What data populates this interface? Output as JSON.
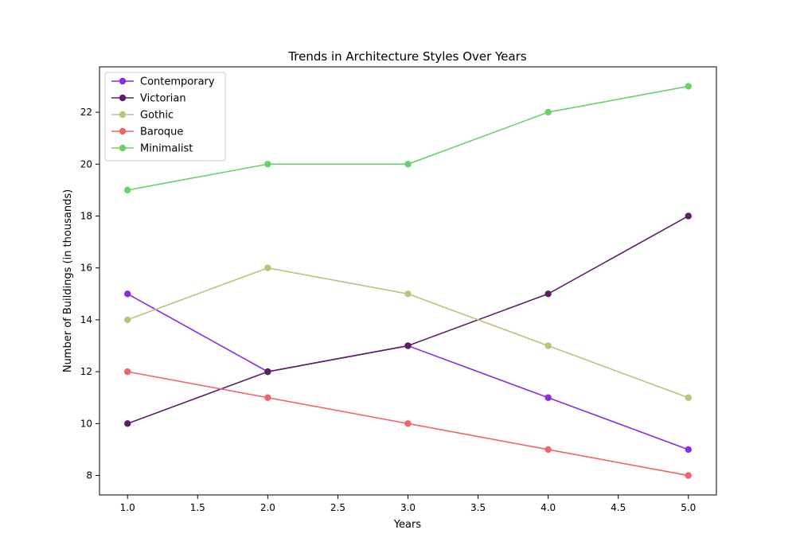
{
  "chart_data": {
    "type": "line",
    "title": "Trends in Architecture Styles Over Years",
    "xlabel": "Years",
    "ylabel": "Number of Buildings (in thousands)",
    "x": [
      1,
      2,
      3,
      4,
      5
    ],
    "xlim": [
      0.8,
      5.2
    ],
    "ylim": [
      7.25,
      23.75
    ],
    "xticks": [
      1.0,
      1.5,
      2.0,
      2.5,
      3.0,
      3.5,
      4.0,
      4.5,
      5.0
    ],
    "xtick_labels": [
      "1.0",
      "1.5",
      "2.0",
      "2.5",
      "3.0",
      "3.5",
      "4.0",
      "4.5",
      "5.0"
    ],
    "yticks": [
      8,
      10,
      12,
      14,
      16,
      18,
      20,
      22
    ],
    "ytick_labels": [
      "8",
      "10",
      "12",
      "14",
      "16",
      "18",
      "20",
      "22"
    ],
    "grid": false,
    "legend_position": "top-left",
    "series": [
      {
        "name": "Contemporary",
        "color": "#8a2be2",
        "values": [
          15,
          12,
          13,
          11,
          9
        ]
      },
      {
        "name": "Victorian",
        "color": "#5c1f66",
        "values": [
          10,
          12,
          13,
          15,
          18
        ]
      },
      {
        "name": "Gothic",
        "color": "#b8c47a",
        "values": [
          14,
          16,
          15,
          13,
          11
        ]
      },
      {
        "name": "Baroque",
        "color": "#f0646a",
        "values": [
          12,
          11,
          10,
          9,
          8
        ]
      },
      {
        "name": "Minimalist",
        "color": "#6ad06a",
        "values": [
          19,
          20,
          20,
          22,
          23
        ]
      }
    ]
  }
}
